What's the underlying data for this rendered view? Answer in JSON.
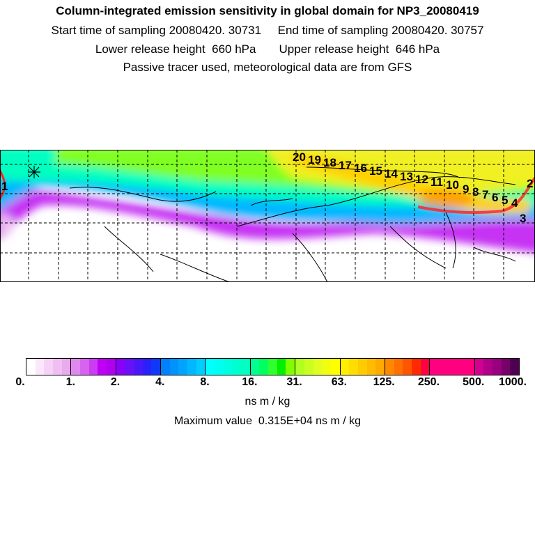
{
  "header": {
    "title": "Column-integrated emission sensitivity in global domain for NP3_20080419",
    "sampling_line": "Start time of sampling 20080420. 30731     End time of sampling 20080420. 30757",
    "release_line": "Lower release height  660 hPa       Upper release height  646 hPa",
    "tracer_line": "Passive tracer used, meteorological data are from GFS"
  },
  "map": {
    "release_marker": "star-marker",
    "trajectory_labels": [
      "20",
      "19",
      "18",
      "17",
      "16",
      "15",
      "14",
      "13",
      "12",
      "11",
      "10",
      "9",
      "8",
      "7",
      "6",
      "5",
      "4",
      "3",
      "2",
      "1"
    ]
  },
  "colorbar": {
    "ticks": [
      "0.",
      "1.",
      "2.",
      "4.",
      "8.",
      "16.",
      "31.",
      "63.",
      "125.",
      "250.",
      "500.",
      "1000."
    ],
    "segments": [
      [
        "#ffffff",
        "#fbe6fb",
        "#f6d2f6",
        "#f0bef2",
        "#eaaaee"
      ],
      [
        "#df88ee",
        "#d664ee",
        "#cb3cf2",
        "#c000f5",
        "#b000f0"
      ],
      [
        "#8a00f8",
        "#6a10f8",
        "#4a18f8",
        "#2a20f8",
        "#1038f8"
      ],
      [
        "#0080ff",
        "#0092ff",
        "#00a4ff",
        "#00b8ff",
        "#00ccff"
      ],
      [
        "#00ffff",
        "#00fff0",
        "#00ffe0",
        "#00ffd0",
        "#00ffc0"
      ],
      [
        "#00ff90",
        "#00ff60",
        "#30ff30",
        "#00f000",
        "#80ff00"
      ],
      [
        "#b0ff20",
        "#c8ff20",
        "#e0ff20",
        "#f0ff10",
        "#ffff00"
      ],
      [
        "#ffee00",
        "#ffdd00",
        "#ffcc00",
        "#ffbb00",
        "#ffaa00"
      ],
      [
        "#ff8800",
        "#ff7000",
        "#ff5500",
        "#ff2a00",
        "#ff0040"
      ],
      [
        "#ff0080",
        "#ff0080",
        "#ff0080",
        "#ff0080",
        "#ff0080"
      ],
      [
        "#d00090",
        "#b00088",
        "#980080",
        "#780068",
        "#500050"
      ]
    ],
    "unit": "ns m / kg",
    "max_value": "Maximum value  0.315E+04 ns m / kg"
  }
}
